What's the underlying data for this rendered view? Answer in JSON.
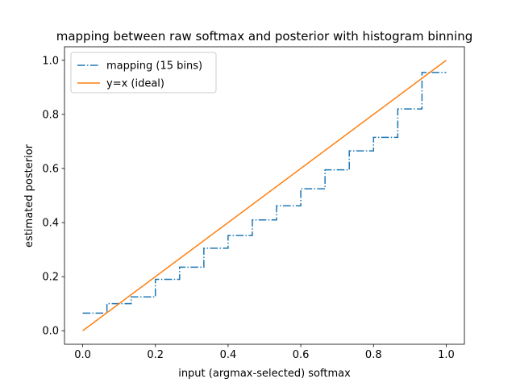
{
  "chart_data": {
    "type": "line",
    "title": "mapping between raw softmax and posterior with histogram binning",
    "xlabel": "input (argmax-selected) softmax",
    "ylabel": "estimated posterior",
    "xlim": [
      -0.05,
      1.05
    ],
    "ylim": [
      -0.05,
      1.05
    ],
    "xticks": [
      0.0,
      0.2,
      0.4,
      0.6,
      0.8,
      1.0
    ],
    "xtick_labels": [
      "0.0",
      "0.2",
      "0.4",
      "0.6",
      "0.8",
      "1.0"
    ],
    "yticks": [
      0.0,
      0.2,
      0.4,
      0.6,
      0.8,
      1.0
    ],
    "ytick_labels": [
      "0.0",
      "0.2",
      "0.4",
      "0.6",
      "0.8",
      "1.0"
    ],
    "grid": false,
    "legend_position": "top-left",
    "series": [
      {
        "name": "mapping (15 bins)",
        "style": "step-dashdot",
        "color": "#1f77b4",
        "bin_edges": [
          0.0,
          0.0667,
          0.1333,
          0.2,
          0.2667,
          0.3333,
          0.4,
          0.4667,
          0.5333,
          0.6,
          0.6667,
          0.7333,
          0.8,
          0.8667,
          0.9333,
          1.0
        ],
        "bin_values": [
          0.065,
          0.1,
          0.125,
          0.19,
          0.235,
          0.305,
          0.352,
          0.41,
          0.462,
          0.525,
          0.595,
          0.665,
          0.715,
          0.82,
          0.955
        ]
      },
      {
        "name": "y=x (ideal)",
        "style": "solid",
        "color": "#ff7f0e",
        "x": [
          0.0,
          1.0
        ],
        "y": [
          0.0,
          1.0
        ]
      }
    ]
  }
}
